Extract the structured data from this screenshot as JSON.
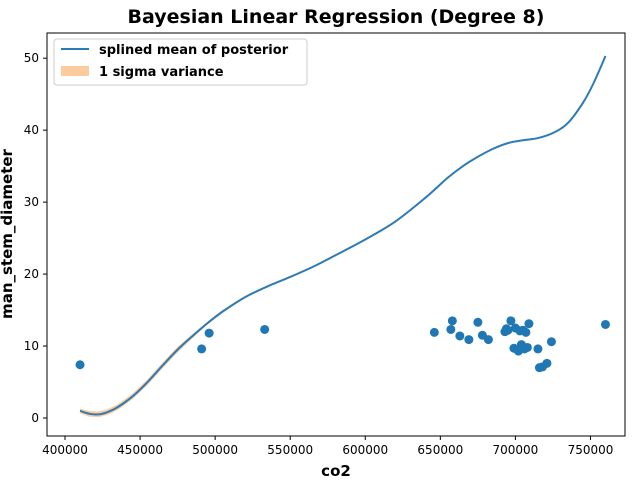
{
  "chart_data": {
    "type": "scatter",
    "title": "Bayesian Linear Regression (Degree 8)",
    "xlabel": "co2",
    "ylabel": "man_stem_diameter",
    "xlim": [
      388000,
      773000
    ],
    "ylim": [
      -2.5,
      53.5
    ],
    "x_ticks": [
      400000,
      450000,
      500000,
      550000,
      600000,
      650000,
      700000,
      750000
    ],
    "x_tick_labels": [
      "400000",
      "450000",
      "500000",
      "550000",
      "600000",
      "650000",
      "700000",
      "750000"
    ],
    "y_ticks": [
      0,
      10,
      20,
      30,
      40,
      50
    ],
    "y_tick_labels": [
      "0",
      "10",
      "20",
      "30",
      "40",
      "50"
    ],
    "grid": false,
    "legend_position": "top-left",
    "colors": {
      "mean_line": "#2c7bb6",
      "band": "#fdbf86",
      "points": "#1f77b4"
    },
    "legend": [
      {
        "label": "splined mean of posterior",
        "kind": "line"
      },
      {
        "label": "1 sigma variance",
        "kind": "band"
      }
    ],
    "mean_curve": {
      "x": [
        410000,
        416000,
        422000,
        428000,
        435000,
        445000,
        455000,
        465000,
        475000,
        485000,
        495000,
        505000,
        520000,
        535000,
        550000,
        565000,
        580000,
        600000,
        620000,
        640000,
        655000,
        665000,
        675000,
        685000,
        695000,
        705000,
        715000,
        725000,
        735000,
        745000,
        752000,
        760000
      ],
      "y": [
        1.0,
        0.6,
        0.5,
        0.8,
        1.5,
        3.0,
        5.0,
        7.3,
        9.5,
        11.4,
        13.2,
        14.8,
        16.8,
        18.3,
        19.6,
        21.0,
        22.6,
        24.8,
        27.3,
        30.6,
        33.4,
        35.0,
        36.3,
        37.4,
        38.2,
        38.6,
        38.9,
        39.6,
        41.0,
        43.8,
        46.5,
        50.3
      ]
    },
    "sigma_band": {
      "x": [
        410000,
        416000,
        422000,
        428000,
        435000,
        445000,
        455000,
        465000,
        475000,
        485000,
        495000,
        505000,
        520000
      ],
      "lower": [
        0.7,
        0.2,
        0.1,
        0.4,
        1.1,
        2.6,
        4.6,
        6.9,
        9.1,
        11.1,
        13.0,
        14.6,
        16.7
      ],
      "upper": [
        1.3,
        1.0,
        0.9,
        1.2,
        1.9,
        3.4,
        5.4,
        7.7,
        9.9,
        11.7,
        13.4,
        15.0,
        16.9
      ]
    },
    "points": {
      "x": [
        410000,
        491000,
        496000,
        533000,
        646000,
        657000,
        658000,
        663000,
        669000,
        675000,
        678000,
        682000,
        693000,
        694000,
        695000,
        697000,
        699000,
        700000,
        702000,
        703000,
        704000,
        705000,
        706000,
        707000,
        708000,
        709000,
        715000,
        716000,
        718000,
        721000,
        724000,
        760000
      ],
      "y": [
        7.4,
        9.6,
        11.8,
        12.3,
        11.9,
        12.3,
        13.5,
        11.4,
        10.9,
        13.3,
        11.5,
        10.9,
        12.0,
        12.4,
        12.2,
        13.5,
        9.7,
        12.5,
        9.3,
        12.1,
        10.2,
        12.2,
        9.6,
        11.9,
        9.8,
        13.1,
        9.6,
        7.0,
        7.1,
        7.6,
        10.6,
        13.0
      ]
    }
  }
}
